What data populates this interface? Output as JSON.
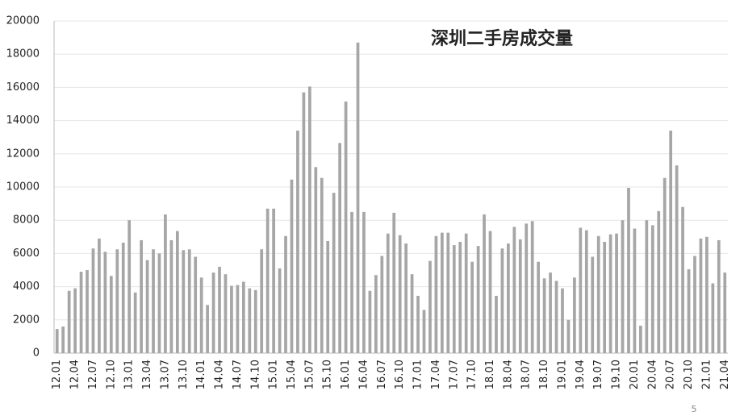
{
  "chart_data": {
    "type": "bar",
    "title": "深圳二手房成交量",
    "categories": [
      "12.01",
      null,
      null,
      "12.04",
      null,
      null,
      "12.07",
      null,
      null,
      "12.10",
      null,
      null,
      "13.01",
      null,
      null,
      "13.04",
      null,
      null,
      "13.07",
      null,
      null,
      "13.10",
      null,
      null,
      "14.01",
      null,
      null,
      "14.04",
      null,
      null,
      "14.07",
      null,
      null,
      "14.10",
      null,
      null,
      "15.01",
      null,
      null,
      "15.04",
      null,
      null,
      "15.07",
      null,
      null,
      "15.10",
      null,
      null,
      "16.01",
      null,
      null,
      "16.04",
      null,
      null,
      "16.07",
      null,
      null,
      "16.10",
      null,
      null,
      "17.01",
      null,
      null,
      "17.04",
      null,
      null,
      "17.07",
      null,
      null,
      "17.10",
      null,
      null,
      "18.01",
      null,
      null,
      "18.04",
      null,
      null,
      "18.07",
      null,
      null,
      "18.10",
      null,
      null,
      "19.01",
      null,
      null,
      "19.04",
      null,
      null,
      "19.07",
      null,
      null,
      "19.10",
      null,
      null,
      "20.01",
      null,
      null,
      "20.04",
      null,
      null,
      "20.07",
      null,
      null,
      "20.10",
      null,
      null,
      "21.01",
      null,
      null,
      "21.04"
    ],
    "values": [
      1450,
      1600,
      3750,
      3900,
      4900,
      5000,
      6300,
      6900,
      6100,
      4650,
      6250,
      6650,
      8000,
      3650,
      6800,
      5600,
      6250,
      6000,
      8350,
      6800,
      7350,
      6200,
      6250,
      5800,
      4550,
      2900,
      4850,
      5200,
      4750,
      4050,
      4100,
      4300,
      3900,
      3800,
      6250,
      8700,
      8700,
      5100,
      7050,
      10450,
      13400,
      15700,
      16050,
      11200,
      10550,
      6750,
      9650,
      12650,
      15150,
      8500,
      18700,
      8500,
      3750,
      4700,
      5850,
      7200,
      8450,
      7100,
      6600,
      4750,
      3450,
      2600,
      5550,
      7050,
      7250,
      7250,
      6500,
      6700,
      7200,
      5500,
      6450,
      8350,
      7350,
      3450,
      6300,
      6600,
      7600,
      6850,
      7800,
      7950,
      5500,
      4500,
      4850,
      4350,
      3900,
      2000,
      4550,
      7550,
      7400,
      5800,
      7050,
      6700,
      7150,
      7200,
      8000,
      9950,
      7500,
      1650,
      8000,
      7700,
      8550,
      10550,
      13400,
      11300,
      8800,
      5050,
      5850,
      6900,
      7000,
      4200,
      6800,
      4850
    ],
    "color": "#a6a6a6",
    "ylim": [
      0,
      20000
    ],
    "yticks": [
      0,
      2000,
      4000,
      6000,
      8000,
      10000,
      12000,
      14000,
      16000,
      18000,
      20000
    ],
    "grid": true,
    "page_number": "5"
  }
}
